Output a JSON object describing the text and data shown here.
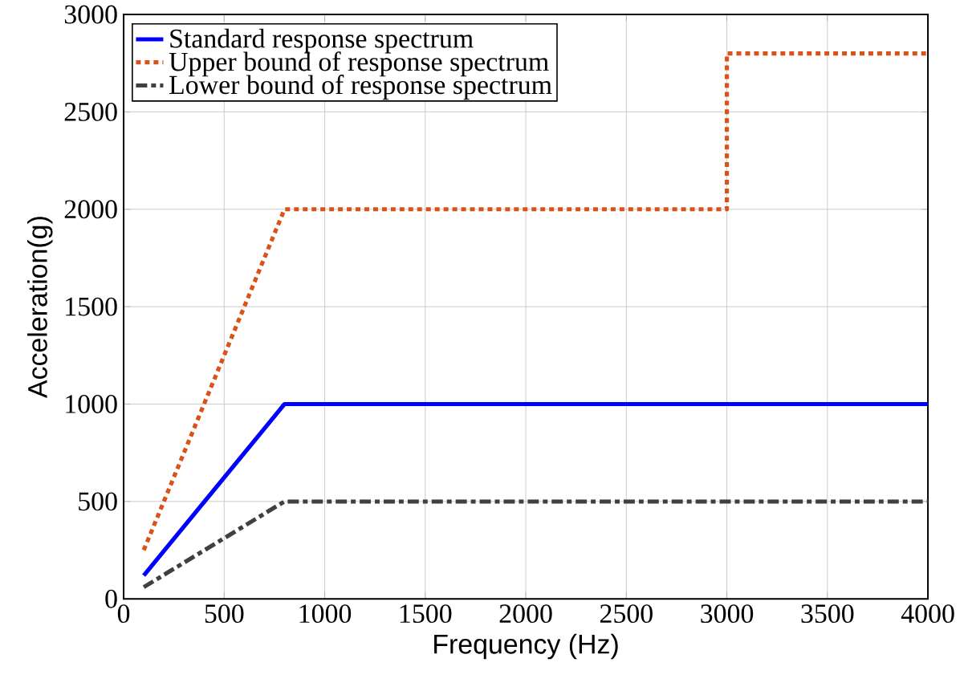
{
  "chart_data": {
    "type": "line",
    "xlabel": "Frequency (Hz)",
    "ylabel": "Acceleration(g)",
    "xlim": [
      0,
      4000
    ],
    "ylim": [
      0,
      3000
    ],
    "xticks": [
      0,
      500,
      1000,
      1500,
      2000,
      2500,
      3000,
      3500,
      4000
    ],
    "yticks": [
      0,
      500,
      1000,
      1500,
      2000,
      2500,
      3000
    ],
    "grid": true,
    "legend": "top left",
    "series": [
      {
        "name": "Standard response spectrum",
        "color": "#0000ff",
        "line_style": "solid",
        "x": [
          100,
          800,
          4000
        ],
        "values": [
          120,
          1000,
          1000
        ]
      },
      {
        "name": "Upper bound of response spectrum",
        "color": "#d95319",
        "line_style": "dotted",
        "x": [
          100,
          800,
          3000,
          3000,
          4000
        ],
        "values": [
          250,
          2000,
          2000,
          2800,
          2800
        ]
      },
      {
        "name": "Lower bound of response spectrum",
        "color": "#404040",
        "line_style": "dashdot",
        "x": [
          100,
          800,
          4000
        ],
        "values": [
          60,
          500,
          500
        ]
      }
    ]
  }
}
